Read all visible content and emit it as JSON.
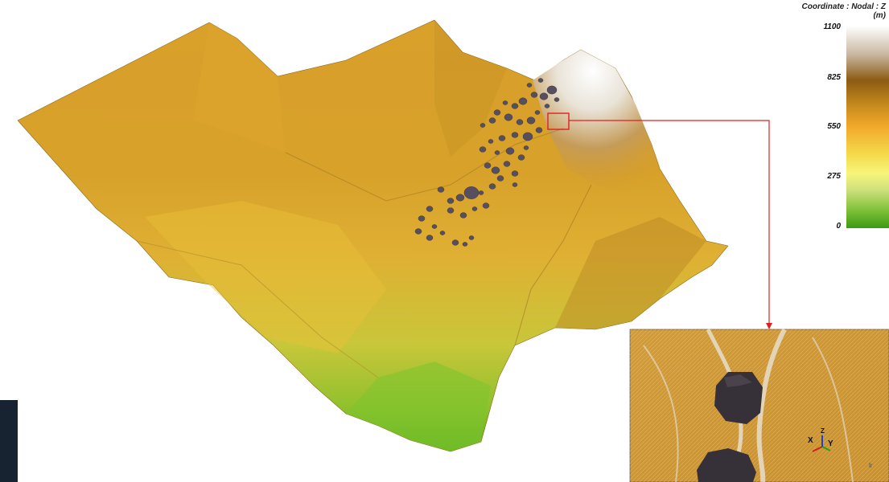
{
  "colorbar": {
    "title_line1": "Coordinate : Nodal : Z",
    "title_line2": "(m)",
    "ticks": [
      "1100",
      "825",
      "550",
      "275",
      "0"
    ]
  },
  "inset": {
    "axis_x": "X",
    "axis_y": "Y",
    "axis_z": "Z",
    "small_mark": "lr"
  },
  "colors": {
    "terrain_mid": "#d99d22",
    "terrain_low": "#6fbd26",
    "terrain_high": "#f2efe9",
    "boulder": "#574f5e",
    "callout_line": "#e02020",
    "left_strip": "#172331"
  }
}
